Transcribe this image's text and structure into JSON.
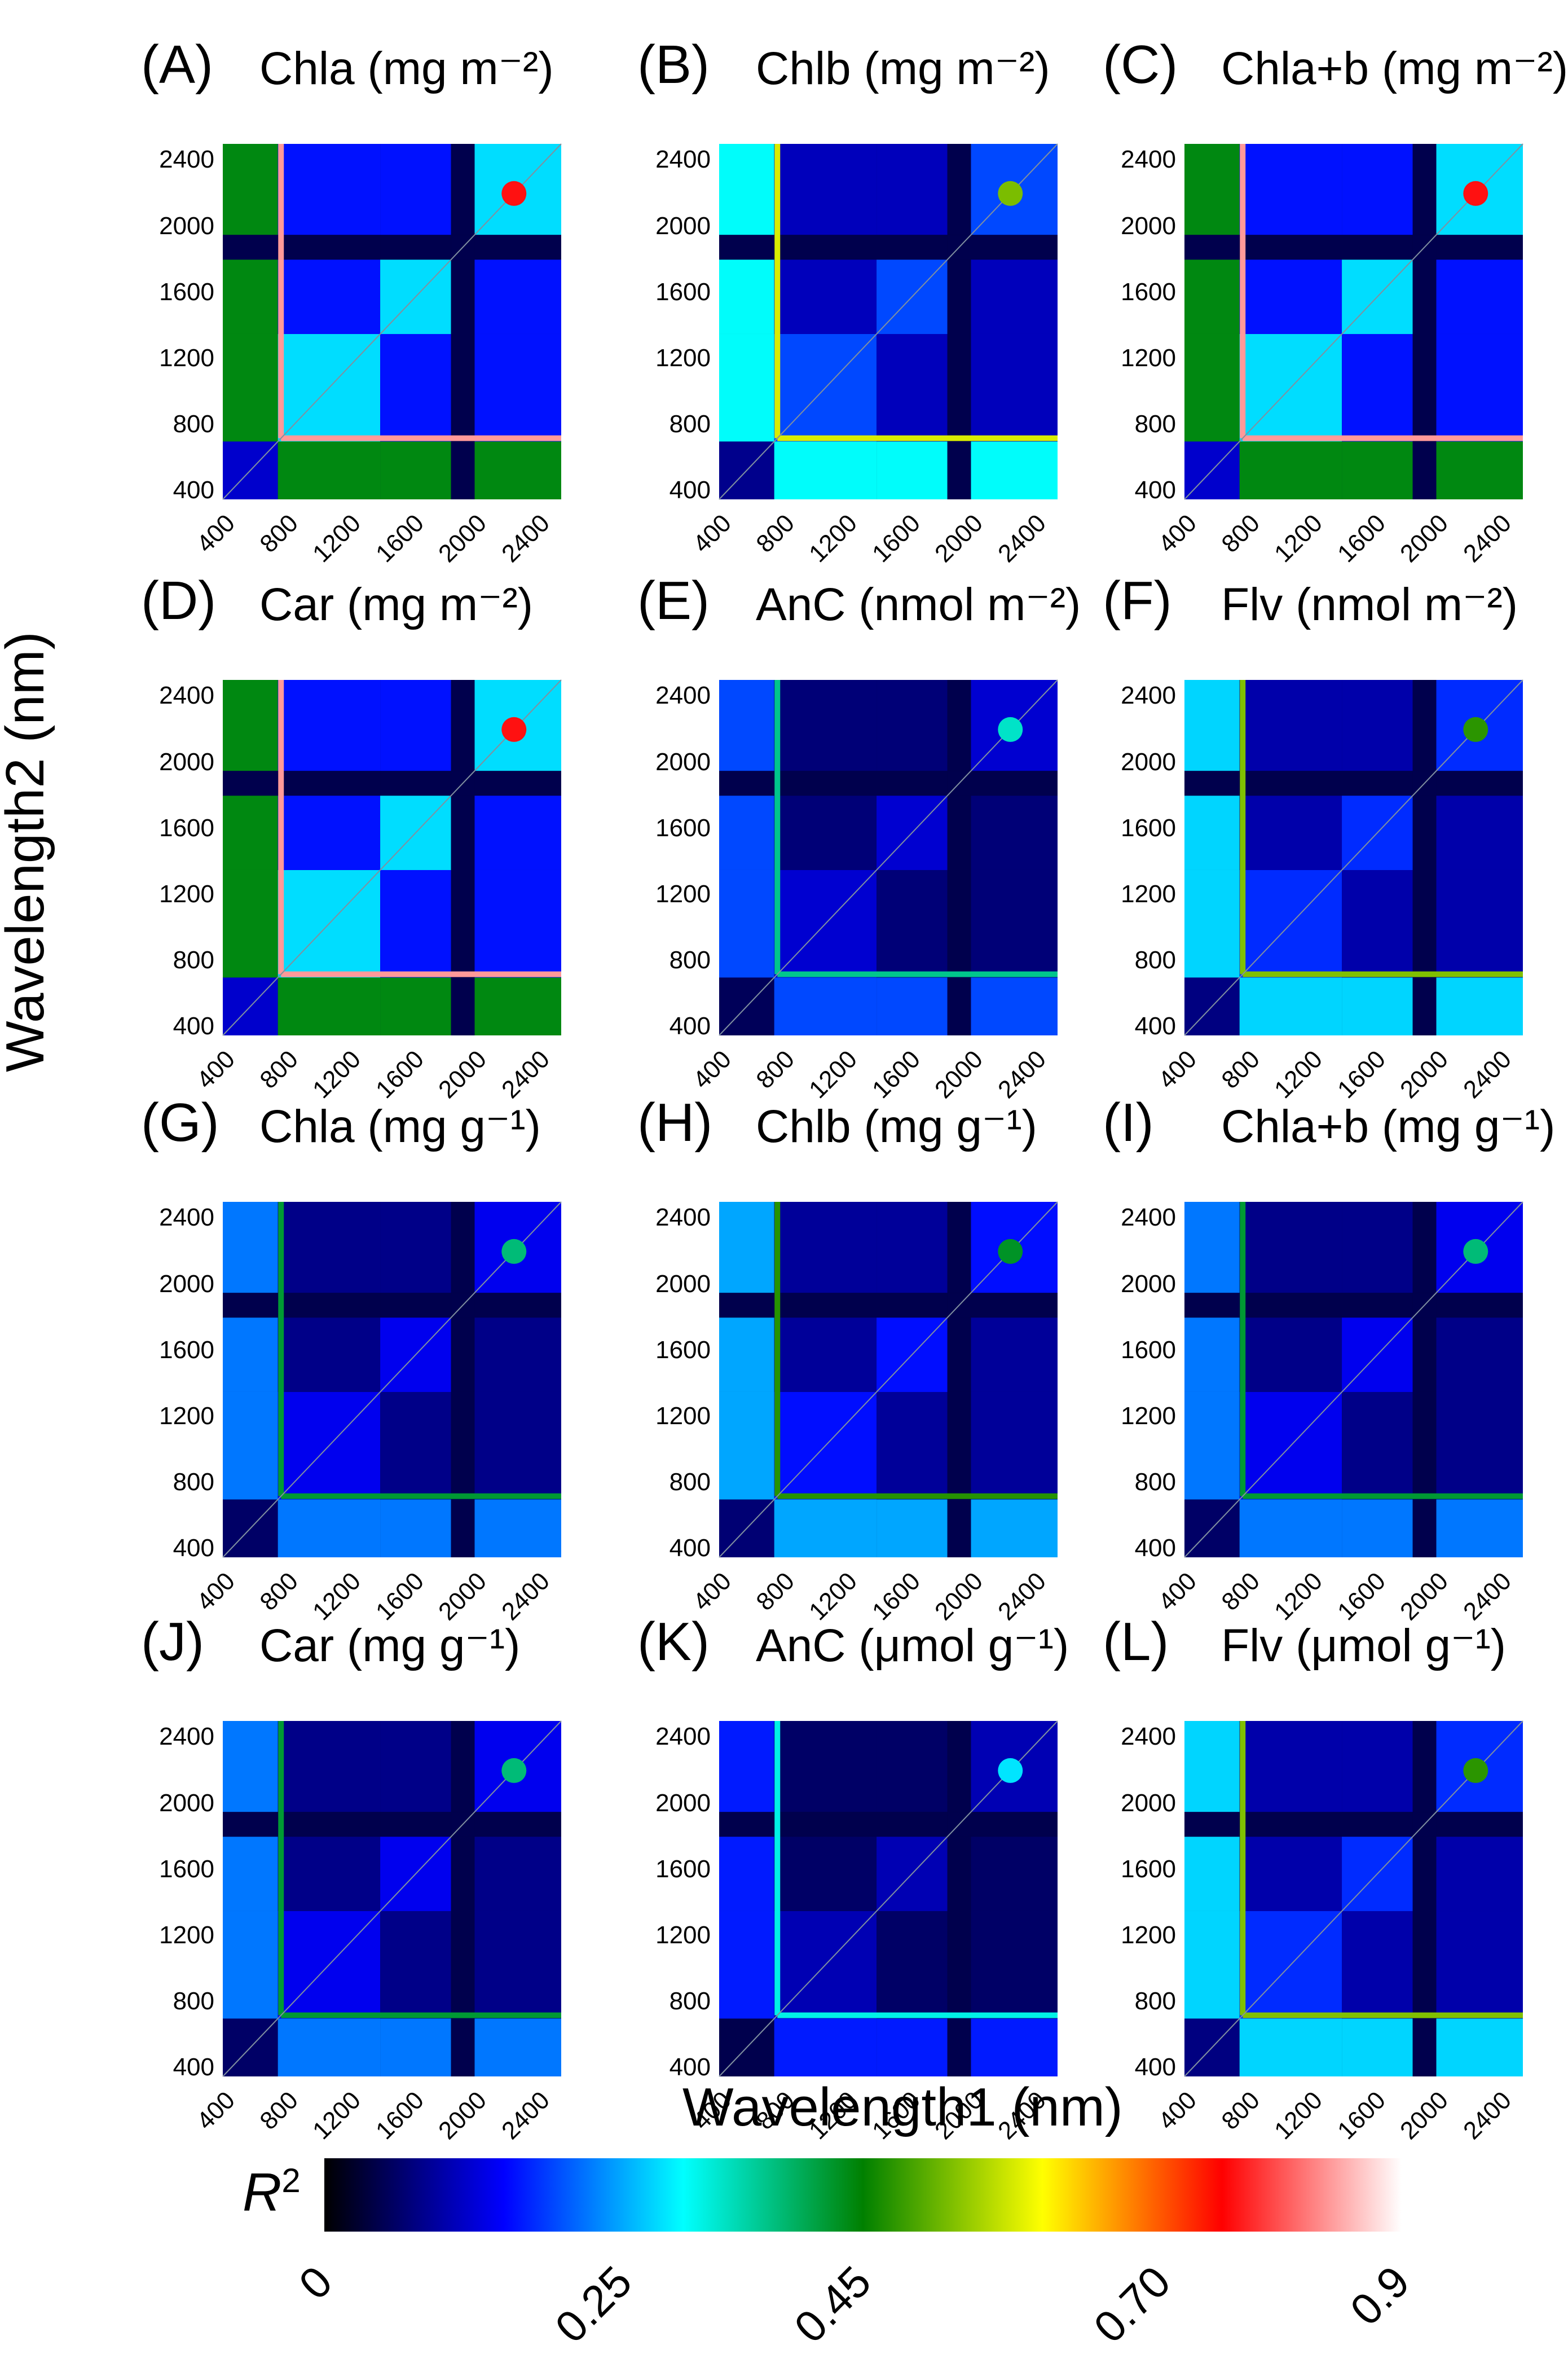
{
  "chart_data": {
    "type": "heatmap",
    "xlabel": "Wavelength1 (nm)",
    "ylabel": "Wavelength2 (nm)",
    "x_ticks": [
      "400",
      "800",
      "1200",
      "1600",
      "2000",
      "2400"
    ],
    "y_ticks": [
      "2400",
      "2000",
      "1600",
      "1200",
      "800",
      "400"
    ],
    "xlim": [
      350,
      2500
    ],
    "ylim": [
      350,
      2500
    ],
    "colorbar": {
      "label": "R",
      "label_sup": "2",
      "ticks": [
        "0",
        "0.25",
        "0.45",
        "0.70",
        "0.9"
      ],
      "range": [
        0,
        0.9
      ],
      "colors": [
        "#000000",
        "#0000ff",
        "#00ffff",
        "#008000",
        "#ffff00",
        "#ff0000",
        "#ffffff"
      ]
    },
    "panels": [
      {
        "letter": "(A)",
        "title": "Chla (mg m⁻²)",
        "max_r2": 0.8
      },
      {
        "letter": "(B)",
        "title": "Chlb (mg m⁻²)",
        "max_r2": 0.55
      },
      {
        "letter": "(C)",
        "title": "Chla+b (mg m⁻²)",
        "max_r2": 0.8
      },
      {
        "letter": "(D)",
        "title": "Car (mg m⁻²)",
        "max_r2": 0.8
      },
      {
        "letter": "(E)",
        "title": "AnC (nmol m⁻²)",
        "max_r2": 0.35
      },
      {
        "letter": "(F)",
        "title": "Flv (nmol m⁻²)",
        "max_r2": 0.5
      },
      {
        "letter": "(G)",
        "title": "Chla (mg g⁻¹)",
        "max_r2": 0.4
      },
      {
        "letter": "(H)",
        "title": "Chlb (mg g⁻¹)",
        "max_r2": 0.45
      },
      {
        "letter": "(I)",
        "title": "Chla+b (mg g⁻¹)",
        "max_r2": 0.4
      },
      {
        "letter": "(J)",
        "title": "Car (mg g⁻¹)",
        "max_r2": 0.4
      },
      {
        "letter": "(K)",
        "title": "AnC (μmol g⁻¹)",
        "max_r2": 0.3
      },
      {
        "letter": "(L)",
        "title": "Flv (μmol g⁻¹)",
        "max_r2": 0.5
      }
    ]
  }
}
